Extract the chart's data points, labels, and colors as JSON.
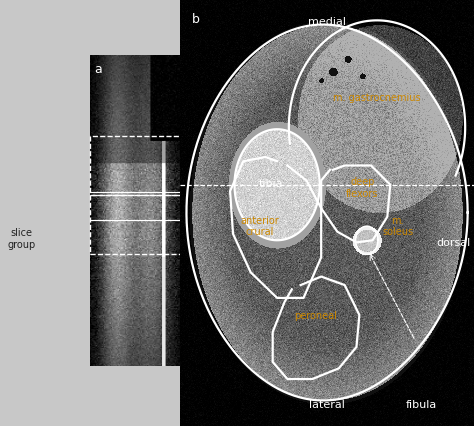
{
  "fig_width": 4.74,
  "fig_height": 4.27,
  "dpi": 100,
  "bg_color": "#c8c8c8",
  "panel_a_bg": "#c8c8c8",
  "panel_b_bg": "#111111",
  "white": "#ffffff",
  "orange": "#cc8800",
  "label_fs": 9,
  "anatomy_fs": 7,
  "direction_fs": 8,
  "slice_group_text": "slice\ngroup",
  "panel_a_label": "a",
  "panel_b_label": "b",
  "medial_label": "medial",
  "lateral_label": "lateral",
  "fibula_label": "fibula",
  "dorsal_label": "dorsal",
  "tibia_label": "tibia",
  "gastro_label": "m. gastrocnemius",
  "deep_label": "deep\nflexors",
  "soleus_label": "m.\nsoleus",
  "anterior_label": "anterior\ncrural",
  "peroneal_label": "peroneal"
}
